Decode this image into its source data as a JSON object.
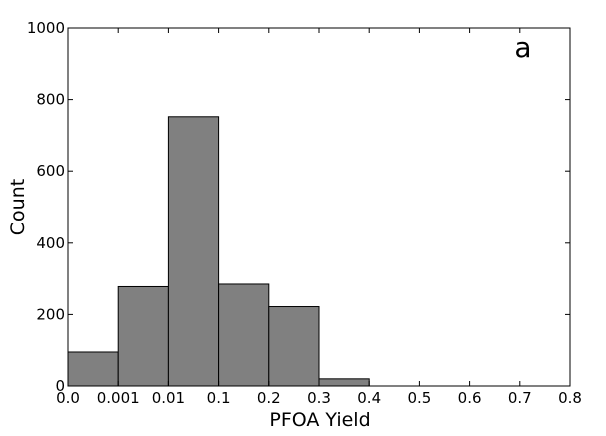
{
  "chart_data": {
    "type": "bar",
    "panel_label": "a",
    "xlabel": "PFOA Yield",
    "ylabel": "Count",
    "ylim": [
      0,
      1000
    ],
    "y_ticks": [
      0,
      200,
      400,
      600,
      800,
      1000
    ],
    "x_tick_labels": [
      "0.0",
      "0.001",
      "0.01",
      "0.1",
      "0.2",
      "0.3",
      "0.4",
      "0.5",
      "0.6",
      "0.7",
      "0.8"
    ],
    "bins": [
      {
        "from": "0.0",
        "to": "0.001",
        "value": 95
      },
      {
        "from": "0.001",
        "to": "0.01",
        "value": 278
      },
      {
        "from": "0.01",
        "to": "0.1",
        "value": 752
      },
      {
        "from": "0.1",
        "to": "0.2",
        "value": 285
      },
      {
        "from": "0.2",
        "to": "0.3",
        "value": 222
      },
      {
        "from": "0.3",
        "to": "0.4",
        "value": 20
      }
    ],
    "bar_color": "#808080",
    "grid": false
  }
}
